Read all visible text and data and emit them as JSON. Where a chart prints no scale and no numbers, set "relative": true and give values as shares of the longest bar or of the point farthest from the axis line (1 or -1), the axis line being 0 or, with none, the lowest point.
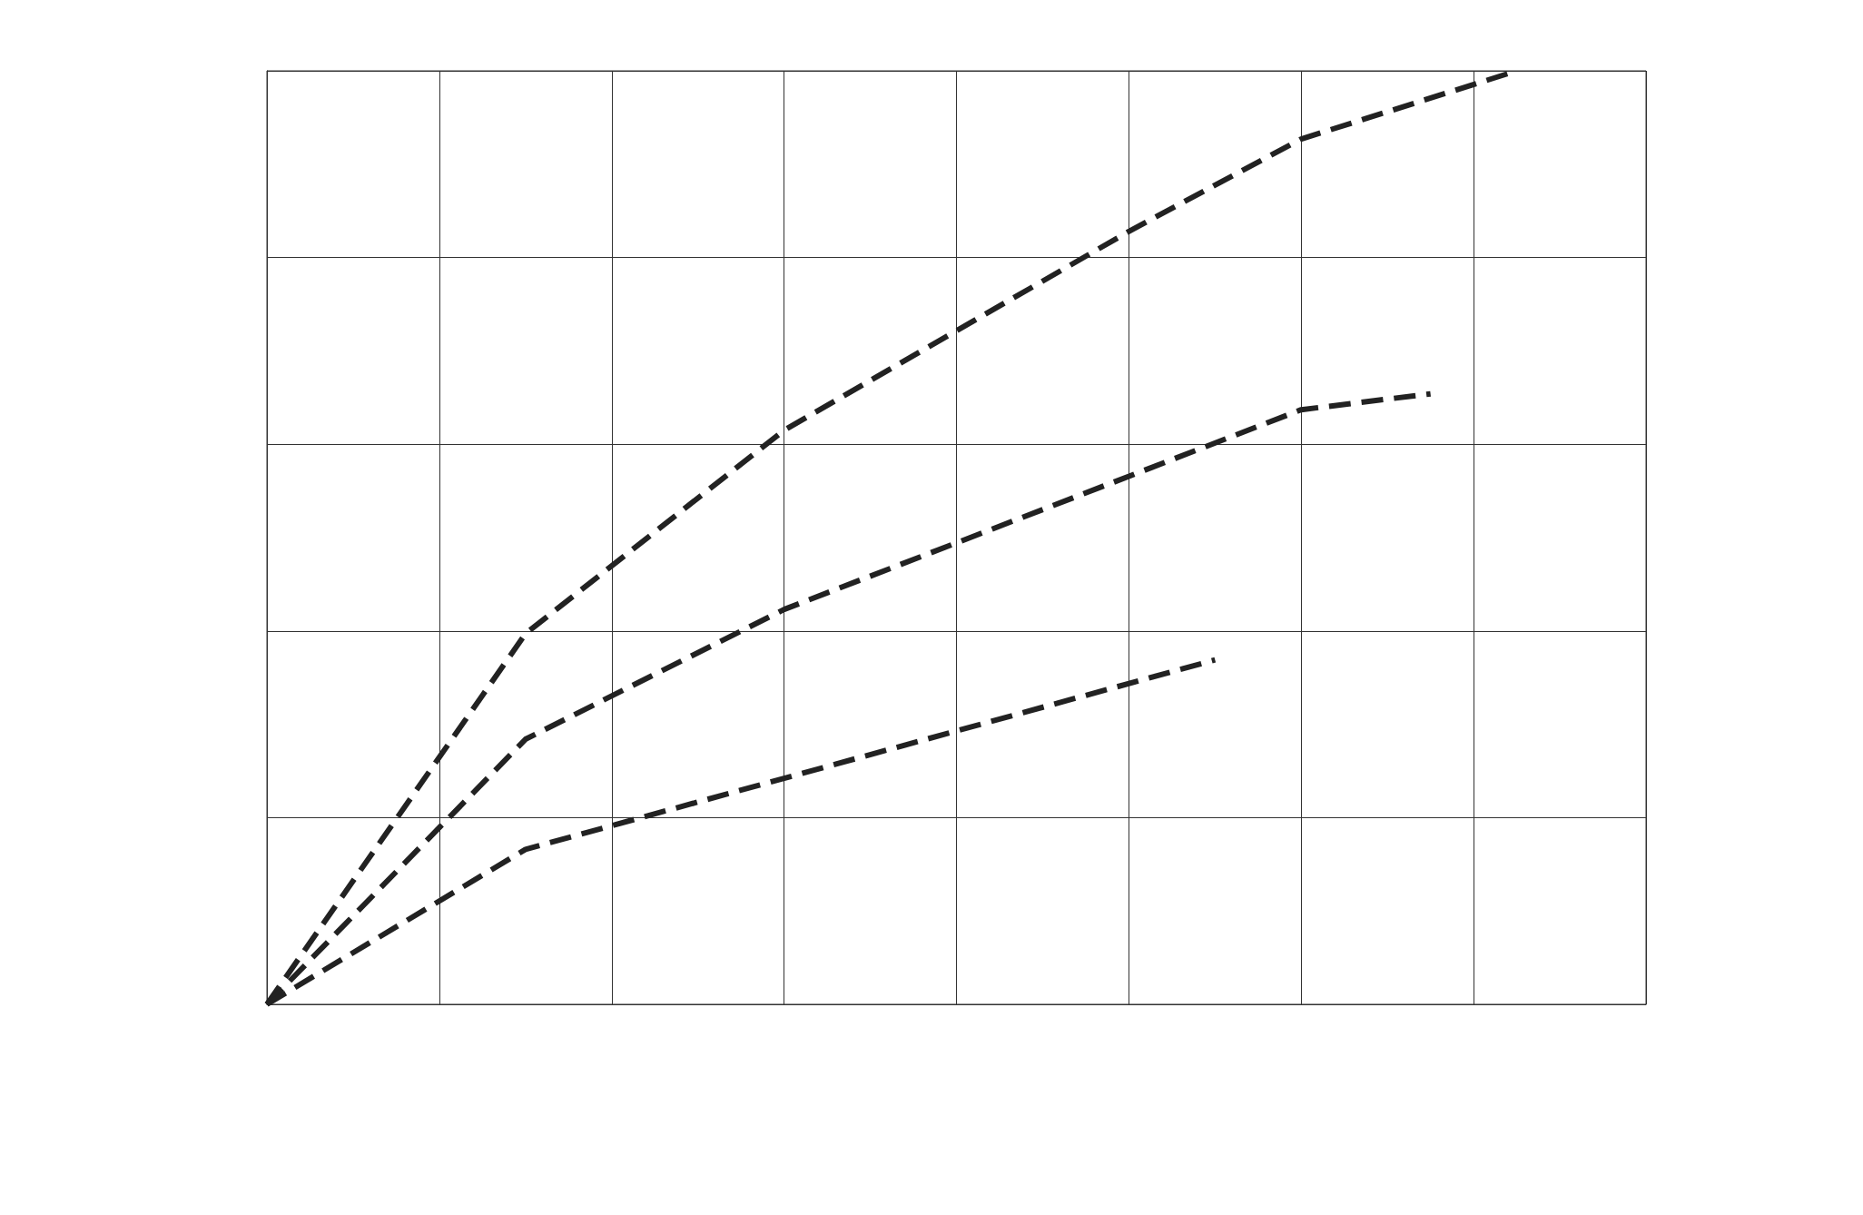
{
  "chart_data": {
    "type": "line",
    "relative": true,
    "grid": true,
    "line_style": "dashed",
    "marker": "none",
    "categories": [
      null,
      null,
      null,
      null,
      null,
      null,
      null,
      null,
      null,
      null,
      null,
      null,
      null,
      null,
      null,
      null,
      null,
      null,
      null,
      null,
      null,
      null,
      null,
      null,
      null,
      null,
      null,
      null,
      null,
      null,
      null,
      null,
      null
    ],
    "series": [
      {
        "color": "#222222",
        "values": [
          0,
          null,
          null,
          null,
          null,
          null,
          0.397,
          null,
          null,
          null,
          null,
          null,
          0.615,
          null,
          null,
          null,
          null,
          null,
          null,
          null,
          0.828,
          null,
          null,
          null,
          0.927,
          null,
          null,
          null,
          null,
          1,
          null,
          null,
          null
        ]
      },
      {
        "color": "#222222",
        "values": [
          0,
          null,
          null,
          null,
          null,
          null,
          0.284,
          null,
          null,
          null,
          null,
          null,
          0.423,
          null,
          null,
          null,
          null,
          null,
          null,
          null,
          null,
          null,
          null,
          null,
          0.637,
          null,
          null,
          0.654,
          null,
          null,
          null,
          null,
          null
        ]
      },
      {
        "color": "#222222",
        "values": [
          0,
          null,
          null,
          null,
          null,
          null,
          0.166,
          null,
          null,
          null,
          null,
          null,
          null,
          null,
          null,
          null,
          null,
          null,
          null,
          null,
          null,
          null,
          0.369,
          null,
          null,
          null,
          null,
          null,
          null,
          null,
          null,
          null,
          null
        ]
      }
    ]
  }
}
